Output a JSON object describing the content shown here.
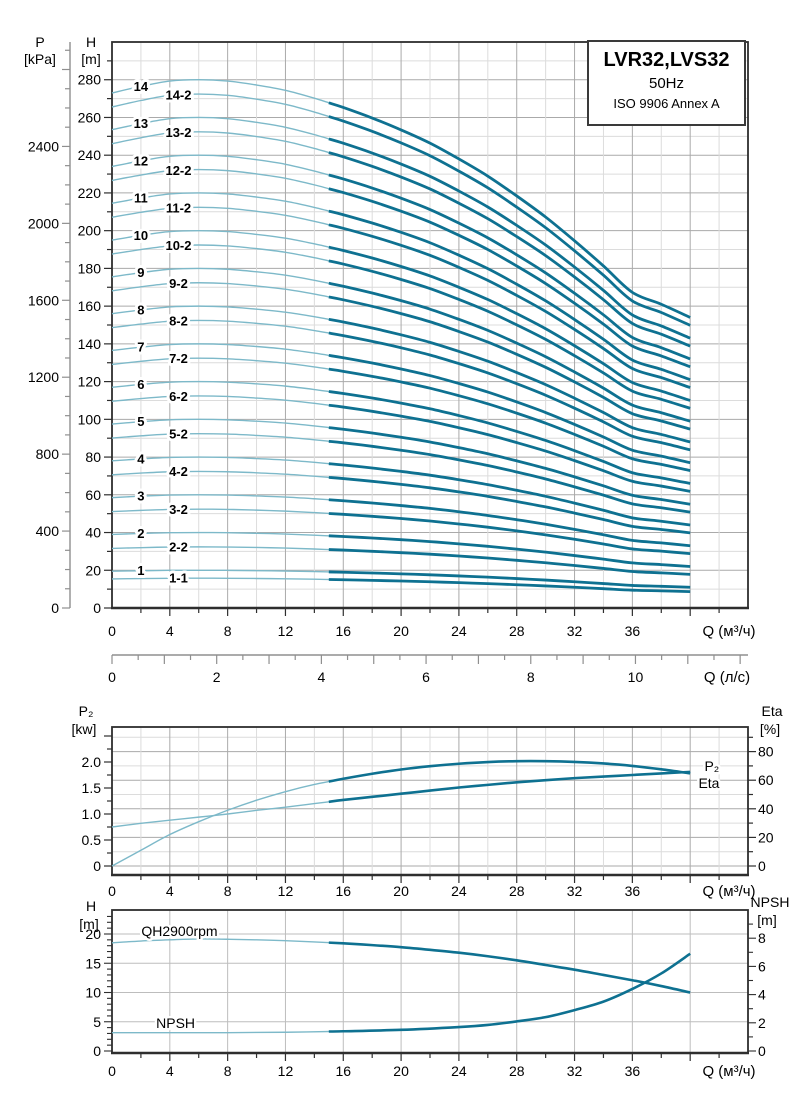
{
  "figure_title": {
    "model": "LVR32,LVS32",
    "frequency": "50Hz",
    "standard": "ISO 9906 Annex A"
  },
  "colors": {
    "curve_bold": "#0e7191",
    "curve_light": "#7db9c9",
    "grid_minor": "#dcdcdc",
    "grid_major": "#aaaaaa",
    "grid_soft": "#bdbdbd",
    "axis": "#2e2e2e",
    "outer_axis": "#8f8f8f",
    "text": "#000000"
  },
  "chart_data": [
    {
      "type": "line",
      "name": "main-qh-multistage",
      "x_axis": {
        "label": "Q (м³/ч)",
        "min": 0,
        "max": 44,
        "major_step": 4,
        "minor_step": 2,
        "tick_labels": [
          "0",
          "4",
          "8",
          "12",
          "16",
          "20",
          "24",
          "28",
          "32",
          "36"
        ]
      },
      "x_axis_secondary": {
        "label": "Q (л/с)",
        "min": 0,
        "max": 12.15,
        "major_step": 1,
        "minor_step": 0.5,
        "tick_labels": [
          "0",
          "2",
          "4",
          "6",
          "8",
          "10"
        ]
      },
      "y_axis_head": {
        "header": "H",
        "unit": "[m]",
        "min": 0,
        "max": 300,
        "major_step": 20,
        "minor_step": 10,
        "tick_labels": [
          "0",
          "20",
          "40",
          "60",
          "80",
          "100",
          "120",
          "140",
          "160",
          "180",
          "200",
          "220",
          "240",
          "260",
          "280"
        ]
      },
      "y_axis_pressure": {
        "header": "P",
        "unit": "[kPa]",
        "min": 0,
        "max": 2943,
        "major_step": 400,
        "minor_step": 100,
        "tick_labels": [
          "0",
          "400",
          "800",
          "1200",
          "1600",
          "2000",
          "2400"
        ]
      },
      "bold_q_range": [
        15,
        40
      ],
      "curve_label_q": {
        "main": 2.0,
        "variant": 4.6
      },
      "stage_curve": {
        "q": [
          0,
          2,
          4,
          6,
          8,
          10,
          12,
          14,
          16,
          18,
          20,
          22,
          24,
          26,
          28,
          30,
          32,
          34,
          36,
          38,
          40
        ],
        "h_per_stage": [
          19.5,
          19.75,
          19.95,
          20.0,
          19.95,
          19.8,
          19.6,
          19.3,
          18.95,
          18.55,
          18.1,
          17.6,
          17.0,
          16.35,
          15.6,
          14.8,
          13.9,
          12.95,
          11.95,
          11.5,
          11.0
        ]
      },
      "series": [
        {
          "label": "14",
          "stages": 14.0
        },
        {
          "label": "14-2",
          "stages": 13.62
        },
        {
          "label": "13",
          "stages": 13.0
        },
        {
          "label": "13-2",
          "stages": 12.62
        },
        {
          "label": "12",
          "stages": 12.0
        },
        {
          "label": "12-2",
          "stages": 11.62
        },
        {
          "label": "11",
          "stages": 11.0
        },
        {
          "label": "11-2",
          "stages": 10.62
        },
        {
          "label": "10",
          "stages": 10.0
        },
        {
          "label": "10-2",
          "stages": 9.62
        },
        {
          "label": "9",
          "stages": 9.0
        },
        {
          "label": "9-2",
          "stages": 8.62
        },
        {
          "label": "8",
          "stages": 8.0
        },
        {
          "label": "8-2",
          "stages": 7.62
        },
        {
          "label": "7",
          "stages": 7.0
        },
        {
          "label": "7-2",
          "stages": 6.62
        },
        {
          "label": "6",
          "stages": 6.0
        },
        {
          "label": "6-2",
          "stages": 5.62
        },
        {
          "label": "5",
          "stages": 5.0
        },
        {
          "label": "5-2",
          "stages": 4.62
        },
        {
          "label": "4",
          "stages": 4.0
        },
        {
          "label": "4-2",
          "stages": 3.62
        },
        {
          "label": "3",
          "stages": 3.0
        },
        {
          "label": "3-2",
          "stages": 2.62
        },
        {
          "label": "2",
          "stages": 2.0
        },
        {
          "label": "2-2",
          "stages": 1.62
        },
        {
          "label": "1",
          "stages": 1.0
        },
        {
          "label": "1-1",
          "stages": 0.79
        }
      ]
    },
    {
      "type": "line",
      "name": "power-and-efficiency",
      "x_axis": {
        "label": "Q (м³/ч)",
        "min": 0,
        "max": 44,
        "major_step": 4,
        "minor_step": 2,
        "tick_labels": [
          "0",
          "4",
          "8",
          "12",
          "16",
          "20",
          "24",
          "28",
          "32",
          "36"
        ]
      },
      "y_axis_left": {
        "header": "P₂",
        "unit": "[kw]",
        "major_step": 0.5,
        "minor_step": 0.25,
        "tick_labels": [
          "0",
          "0.5",
          "1.0",
          "1.5",
          "2.0"
        ]
      },
      "y_axis_right": {
        "header": "Eta",
        "unit": "[%]",
        "major_step": 20,
        "minor_step": 10,
        "tick_labels": [
          "0",
          "20",
          "40",
          "60",
          "80"
        ]
      },
      "bold_q_range": [
        15,
        40
      ],
      "series": [
        {
          "name": "P2",
          "label": "P₂",
          "axis": "left",
          "label_at": [
            41.5,
            1.92
          ],
          "points": [
            [
              0,
              0.75
            ],
            [
              2,
              0.82
            ],
            [
              4,
              0.88
            ],
            [
              6,
              0.94
            ],
            [
              8,
              1.0
            ],
            [
              10,
              1.07
            ],
            [
              12,
              1.13
            ],
            [
              14,
              1.2
            ],
            [
              16,
              1.27
            ],
            [
              18,
              1.33
            ],
            [
              20,
              1.39
            ],
            [
              22,
              1.45
            ],
            [
              24,
              1.51
            ],
            [
              26,
              1.56
            ],
            [
              28,
              1.61
            ],
            [
              30,
              1.65
            ],
            [
              32,
              1.69
            ],
            [
              34,
              1.72
            ],
            [
              36,
              1.75
            ],
            [
              38,
              1.78
            ],
            [
              40,
              1.81
            ]
          ]
        },
        {
          "name": "Eta",
          "label": "Eta",
          "axis": "right",
          "label_at": [
            41.3,
            58
          ],
          "points": [
            [
              0,
              0
            ],
            [
              2,
              11
            ],
            [
              4,
              22
            ],
            [
              6,
              31
            ],
            [
              8,
              39
            ],
            [
              10,
              46
            ],
            [
              12,
              52
            ],
            [
              14,
              57
            ],
            [
              16,
              61
            ],
            [
              18,
              64.5
            ],
            [
              20,
              67.5
            ],
            [
              22,
              69.8
            ],
            [
              24,
              71.5
            ],
            [
              26,
              72.7
            ],
            [
              28,
              73.3
            ],
            [
              30,
              73.3
            ],
            [
              32,
              72.8
            ],
            [
              34,
              71.7
            ],
            [
              36,
              70
            ],
            [
              38,
              67.6
            ],
            [
              40,
              64.8
            ]
          ]
        }
      ]
    },
    {
      "type": "line",
      "name": "qh-single-stage-and-npsh",
      "x_axis": {
        "label": "Q (м³/ч)",
        "min": 0,
        "max": 44,
        "major_step": 4,
        "minor_step": 2,
        "tick_labels": [
          "0",
          "4",
          "8",
          "12",
          "16",
          "20",
          "24",
          "28",
          "32",
          "36"
        ]
      },
      "y_axis_left": {
        "header": "H",
        "unit": "[m]",
        "major_step": 5,
        "minor_step": 1,
        "tick_labels": [
          "0",
          "5",
          "10",
          "15",
          "20"
        ]
      },
      "y_axis_right": {
        "header": "NPSH",
        "unit": "[m]",
        "major_step": 2,
        "minor_step": 1,
        "tick_labels": [
          "0",
          "2",
          "4",
          "6",
          "8"
        ]
      },
      "bold_q_range": [
        15,
        40
      ],
      "series": [
        {
          "name": "QH2900rpm",
          "label": "QH2900rpm",
          "axis": "left",
          "label_at": [
            3.7,
            20.5
          ],
          "points": [
            [
              0,
              18.5
            ],
            [
              2,
              18.8
            ],
            [
              4,
              19.0
            ],
            [
              6,
              19.15
            ],
            [
              8,
              19.1
            ],
            [
              10,
              19.0
            ],
            [
              12,
              18.85
            ],
            [
              14,
              18.65
            ],
            [
              16,
              18.4
            ],
            [
              18,
              18.1
            ],
            [
              20,
              17.75
            ],
            [
              22,
              17.3
            ],
            [
              24,
              16.8
            ],
            [
              26,
              16.2
            ],
            [
              28,
              15.5
            ],
            [
              30,
              14.7
            ],
            [
              32,
              13.9
            ],
            [
              34,
              13.0
            ],
            [
              36,
              12.1
            ],
            [
              38,
              11.1
            ],
            [
              40,
              10.0
            ]
          ]
        },
        {
          "name": "NPSH",
          "label": "NPSH",
          "axis": "right",
          "label_at": [
            4.4,
            1.98
          ],
          "points": [
            [
              0,
              1.3
            ],
            [
              4,
              1.3
            ],
            [
              8,
              1.3
            ],
            [
              12,
              1.33
            ],
            [
              16,
              1.4
            ],
            [
              20,
              1.5
            ],
            [
              24,
              1.7
            ],
            [
              26,
              1.85
            ],
            [
              28,
              2.1
            ],
            [
              30,
              2.4
            ],
            [
              32,
              2.9
            ],
            [
              34,
              3.5
            ],
            [
              36,
              4.4
            ],
            [
              38,
              5.5
            ],
            [
              40,
              6.9
            ]
          ]
        }
      ]
    }
  ]
}
